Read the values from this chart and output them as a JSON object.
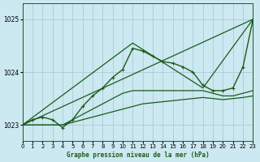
{
  "title": "Graphe pression niveau de la mer (hPa)",
  "bg_color": "#cce8f0",
  "grid_color": "#aaccd8",
  "line_color": "#1a5c1a",
  "xlim": [
    0,
    23
  ],
  "ylim": [
    1022.7,
    1025.3
  ],
  "yticks": [
    1023,
    1024,
    1025
  ],
  "xticks": [
    0,
    1,
    2,
    3,
    4,
    5,
    6,
    7,
    8,
    9,
    10,
    11,
    12,
    13,
    14,
    15,
    16,
    17,
    18,
    19,
    20,
    21,
    22,
    23
  ],
  "series": [
    {
      "x": [
        0,
        23
      ],
      "y": [
        1023.0,
        1025.0
      ],
      "marker": false,
      "lw": 0.9
    },
    {
      "x": [
        0,
        4,
        5,
        6,
        7,
        8,
        9,
        10,
        11,
        12,
        13,
        14,
        15,
        16,
        17,
        18,
        19,
        20,
        21,
        22,
        23
      ],
      "y": [
        1023.0,
        1023.0,
        1023.05,
        1023.1,
        1023.15,
        1023.2,
        1023.25,
        1023.3,
        1023.35,
        1023.4,
        1023.42,
        1023.44,
        1023.46,
        1023.48,
        1023.5,
        1023.52,
        1023.5,
        1023.48,
        1023.5,
        1023.52,
        1023.55
      ],
      "marker": false,
      "lw": 0.9
    },
    {
      "x": [
        0,
        4,
        5,
        6,
        7,
        8,
        9,
        10,
        11,
        12,
        13,
        14,
        15,
        16,
        17,
        18,
        19,
        20,
        21,
        22,
        23
      ],
      "y": [
        1023.0,
        1023.0,
        1023.1,
        1023.2,
        1023.3,
        1023.4,
        1023.5,
        1023.6,
        1023.65,
        1023.65,
        1023.65,
        1023.65,
        1023.65,
        1023.65,
        1023.65,
        1023.65,
        1023.6,
        1023.55,
        1023.55,
        1023.6,
        1023.65
      ],
      "marker": false,
      "lw": 0.9
    },
    {
      "x": [
        0,
        1,
        2,
        3,
        4,
        5,
        6,
        7,
        8,
        9,
        10,
        11,
        12,
        13,
        14,
        15,
        16,
        17,
        18,
        19,
        20,
        21,
        22,
        23
      ],
      "y": [
        1023.0,
        1023.1,
        1023.15,
        1023.1,
        1022.95,
        1023.1,
        1023.35,
        1023.55,
        1023.7,
        1023.9,
        1024.05,
        1024.45,
        1024.4,
        1024.3,
        1024.2,
        1024.17,
        1024.1,
        1024.0,
        1023.75,
        1023.65,
        1023.65,
        1023.7,
        1024.1,
        1025.0
      ],
      "marker": true,
      "lw": 1.0
    },
    {
      "x": [
        0,
        11,
        18,
        23
      ],
      "y": [
        1023.0,
        1024.55,
        1023.7,
        1025.0
      ],
      "marker": false,
      "lw": 0.9
    }
  ]
}
